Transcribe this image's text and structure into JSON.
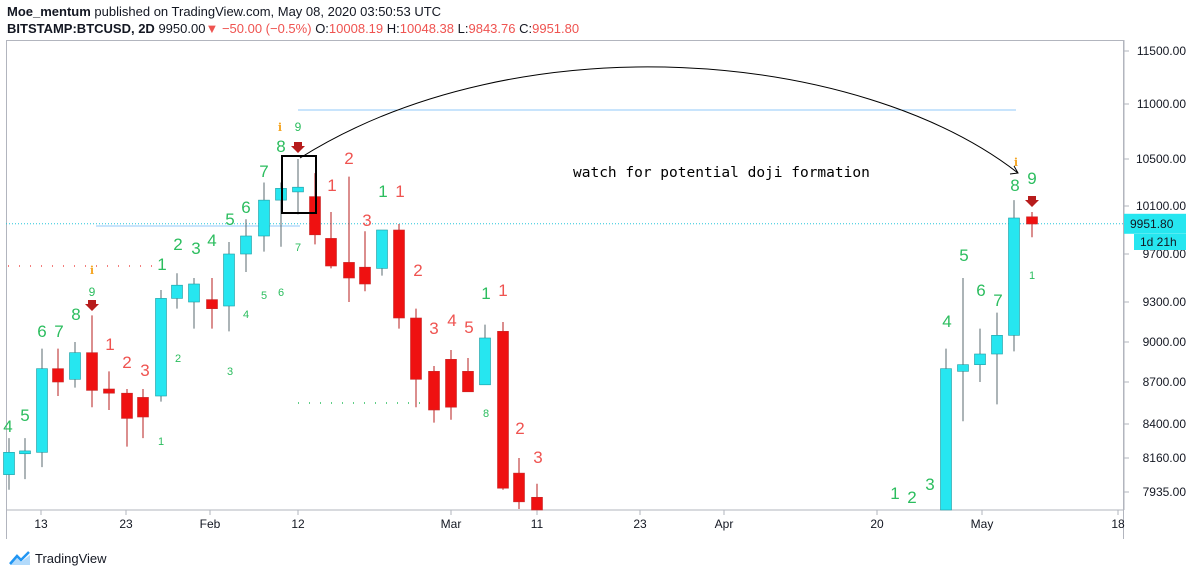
{
  "header": {
    "author": "Moe_mentum",
    "published_text": "published on TradingView.com, May 08, 2020 03:50:53 UTC",
    "symbol": "BITSTAMP:BTCUSD, 2D",
    "price": "9950.00",
    "change": "−50.00 (−0.5%)",
    "o_label": "O:",
    "o_value": "10008.19",
    "h_label": "H:",
    "h_value": "10048.38",
    "l_label": "L:",
    "l_value": "9843.76",
    "c_label": "C:",
    "c_value": "9951.80"
  },
  "footer": {
    "brand": "TradingView"
  },
  "annotation": "watch for potential doji formation",
  "price_tag": "9951.80",
  "countdown_tag": "1d 21h",
  "colors": {
    "up": "#26e6f0",
    "down": "#ef1111",
    "up_count": "#2bbd5e",
    "down_count": "#ef5350",
    "last_price_line": "#26c6da"
  },
  "chart_data": {
    "type": "candlestick",
    "title": "",
    "y_ticks": [
      11500,
      11000,
      10500,
      10100,
      9700,
      9300,
      9000,
      8700,
      8400,
      8160,
      7935
    ],
    "y_tick_labels": [
      "11500.00",
      "11000.00",
      "10500.00",
      "10100.00",
      "9700.00",
      "9300.00",
      "9000.00",
      "8700.00",
      "8400.00",
      "8160.00",
      "7935.00"
    ],
    "x_ticks": [
      "13",
      "23",
      "Feb",
      "12",
      "Mar",
      "11",
      "23",
      "Apr",
      "20",
      "May",
      "18"
    ],
    "last_price": 9951.8,
    "candles": [
      {
        "o": 8050,
        "h": 8300,
        "l": 7950,
        "c": 8200
      },
      {
        "o": 8190,
        "h": 8300,
        "l": 8020,
        "c": 8210
      },
      {
        "o": 8200,
        "h": 8950,
        "l": 8100,
        "c": 8800
      },
      {
        "o": 8800,
        "h": 8950,
        "l": 8600,
        "c": 8700
      },
      {
        "o": 8720,
        "h": 9000,
        "l": 8660,
        "c": 8920
      },
      {
        "o": 8920,
        "h": 9200,
        "l": 8520,
        "c": 8640
      },
      {
        "o": 8650,
        "h": 8780,
        "l": 8500,
        "c": 8620
      },
      {
        "o": 8620,
        "h": 8650,
        "l": 8240,
        "c": 8440
      },
      {
        "o": 8590,
        "h": 8650,
        "l": 8300,
        "c": 8450
      },
      {
        "o": 8600,
        "h": 9400,
        "l": 8560,
        "c": 9330
      },
      {
        "o": 9330,
        "h": 9540,
        "l": 9250,
        "c": 9440
      },
      {
        "o": 9300,
        "h": 9500,
        "l": 9100,
        "c": 9450
      },
      {
        "o": 9320,
        "h": 9500,
        "l": 9100,
        "c": 9250
      },
      {
        "o": 9270,
        "h": 9800,
        "l": 9080,
        "c": 9700
      },
      {
        "o": 9700,
        "h": 9990,
        "l": 9550,
        "c": 9850
      },
      {
        "o": 9850,
        "h": 10300,
        "l": 9720,
        "c": 10150
      },
      {
        "o": 10150,
        "h": 10300,
        "l": 9760,
        "c": 10250
      },
      {
        "o": 10220,
        "h": 10500,
        "l": 10030,
        "c": 10260
      },
      {
        "o": 10180,
        "h": 10380,
        "l": 9780,
        "c": 9860
      },
      {
        "o": 9830,
        "h": 10050,
        "l": 9580,
        "c": 9600
      },
      {
        "o": 9630,
        "h": 10350,
        "l": 9300,
        "c": 9500
      },
      {
        "o": 9590,
        "h": 9890,
        "l": 9390,
        "c": 9450
      },
      {
        "o": 9580,
        "h": 9900,
        "l": 9520,
        "c": 9900
      },
      {
        "o": 9900,
        "h": 9950,
        "l": 9100,
        "c": 9180
      },
      {
        "o": 9180,
        "h": 9250,
        "l": 8520,
        "c": 8720
      },
      {
        "o": 8780,
        "h": 8820,
        "l": 8410,
        "c": 8500
      },
      {
        "o": 8870,
        "h": 8940,
        "l": 8430,
        "c": 8520
      },
      {
        "o": 8780,
        "h": 8880,
        "l": 8630,
        "c": 8630
      },
      {
        "o": 8680,
        "h": 9130,
        "l": 8680,
        "c": 9030
      },
      {
        "o": 9080,
        "h": 9150,
        "l": 7950,
        "c": 7960
      },
      {
        "o": 8060,
        "h": 8160,
        "l": 7800,
        "c": 7870
      },
      {
        "o": 7900,
        "h": 7990,
        "l": 7800,
        "c": 7800
      },
      {
        "o": 7800,
        "h": 8950,
        "l": 7800,
        "c": 8800
      },
      {
        "o": 8780,
        "h": 9500,
        "l": 8420,
        "c": 8830
      },
      {
        "o": 8830,
        "h": 9100,
        "l": 8700,
        "c": 8910
      },
      {
        "o": 8910,
        "h": 9220,
        "l": 8540,
        "c": 9050
      },
      {
        "o": 9050,
        "h": 10150,
        "l": 8930,
        "c": 10000
      },
      {
        "o": 10010,
        "h": 10050,
        "l": 9840,
        "c": 9950
      }
    ],
    "td_counts": [
      {
        "label": "4",
        "dir": "up"
      },
      {
        "label": "5",
        "dir": "up"
      },
      {
        "label": "6",
        "dir": "up"
      },
      {
        "label": "7",
        "dir": "up"
      },
      {
        "label": "8",
        "dir": "up"
      },
      {
        "label": "9",
        "dir": "up"
      },
      {
        "label": "1",
        "dir": "down"
      },
      {
        "label": "2",
        "dir": "down"
      },
      {
        "label": "3",
        "dir": "down"
      },
      {
        "label": "1",
        "dir": "up"
      },
      {
        "label": "2",
        "dir": "up"
      },
      {
        "label": "3",
        "dir": "up"
      },
      {
        "label": "4",
        "dir": "up"
      },
      {
        "label": "5",
        "dir": "up"
      },
      {
        "label": "6",
        "dir": "up"
      },
      {
        "label": "7",
        "dir": "up"
      },
      {
        "label": "8",
        "dir": "up"
      },
      {
        "label": "9",
        "dir": "up"
      },
      {
        "label": "1",
        "dir": "down"
      },
      {
        "label": "2",
        "dir": "down"
      },
      {
        "label": "3",
        "dir": "down"
      },
      {
        "label": "1",
        "dir": "up"
      },
      {
        "label": "1",
        "dir": "down"
      },
      {
        "label": "2",
        "dir": "down"
      },
      {
        "label": "3",
        "dir": "down"
      },
      {
        "label": "4",
        "dir": "down"
      },
      {
        "label": "5",
        "dir": "down"
      },
      {
        "label": "1",
        "dir": "up"
      },
      {
        "label": "1",
        "dir": "down"
      },
      {
        "label": "2",
        "dir": "down"
      },
      {
        "label": "3",
        "dir": "down"
      },
      {
        "label": "1",
        "dir": "up"
      },
      {
        "label": "2",
        "dir": "up"
      },
      {
        "label": "3",
        "dir": "up"
      },
      {
        "label": "4",
        "dir": "up"
      },
      {
        "label": "5",
        "dir": "up"
      },
      {
        "label": "6",
        "dir": "up"
      },
      {
        "label": "7",
        "dir": "up"
      },
      {
        "label": "8",
        "dir": "up"
      },
      {
        "label": "9",
        "dir": "up"
      }
    ],
    "small_counts": [
      {
        "label": "1"
      },
      {
        "label": "2"
      },
      {
        "label": "3"
      },
      {
        "label": "4"
      },
      {
        "label": "5"
      },
      {
        "label": "6"
      },
      {
        "label": "7"
      },
      {
        "label": "8"
      },
      {
        "label": "1"
      }
    ]
  }
}
